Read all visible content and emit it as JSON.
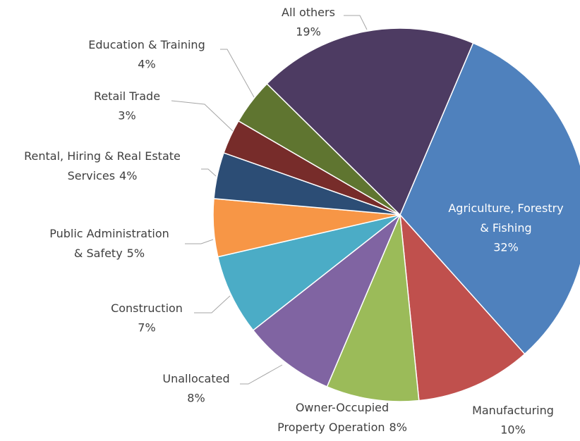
{
  "chart_data": {
    "type": "pie",
    "categories": [
      "Agriculture, Forestry & Fishing",
      "Manufacturing",
      "Owner-Occupied Property Operation",
      "Unallocated",
      "Construction",
      "Public Administration & Safety",
      "Rental, Hiring & Real Estate Services",
      "Retail Trade",
      "Education & Training",
      "All others"
    ],
    "values": [
      32,
      10,
      8,
      8,
      7,
      5,
      4,
      3,
      4,
      19
    ],
    "value_labels": [
      "32%",
      "10%",
      "8%",
      "8%",
      "7%",
      "5%",
      "4%",
      "3%",
      "4%",
      "19%"
    ],
    "colors": [
      "#4f81bd",
      "#c0504d",
      "#9bbb59",
      "#8064a2",
      "#4bacc6",
      "#f79646",
      "#2c4d75",
      "#772c2a",
      "#5f7530",
      "#4d3b62"
    ]
  }
}
